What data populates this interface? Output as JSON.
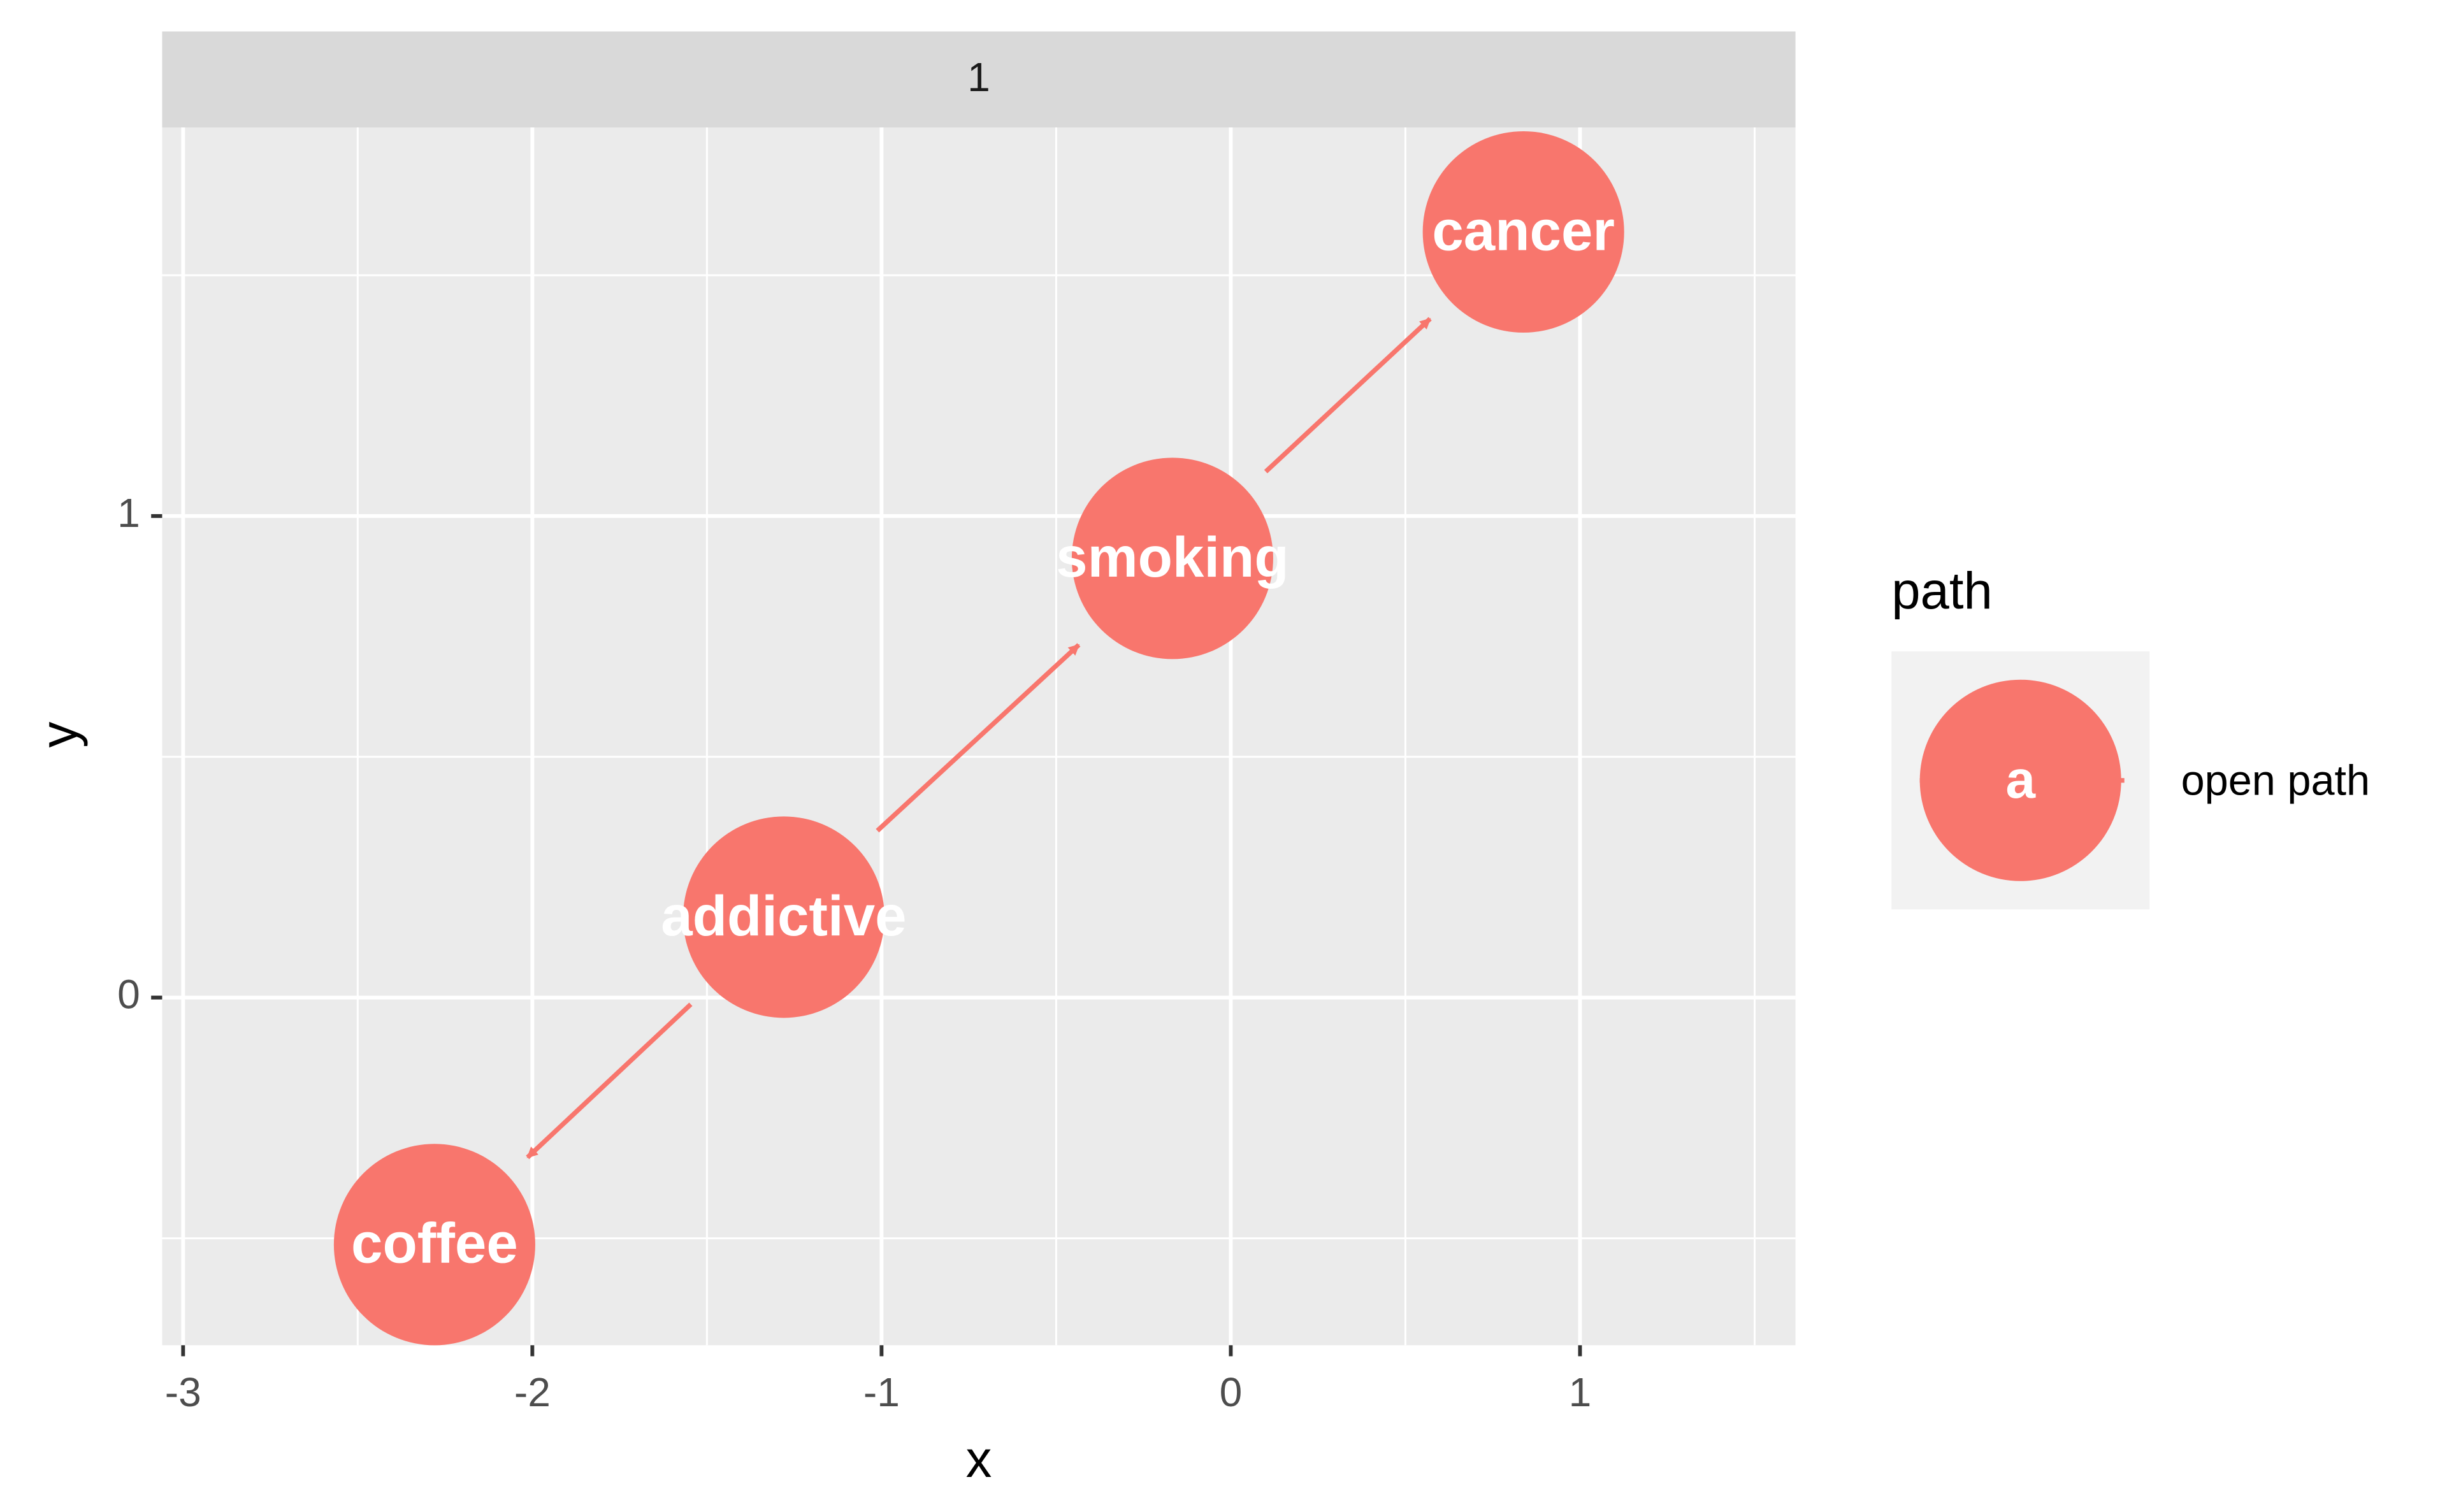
{
  "chart_data": {
    "type": "dag",
    "strip": "1",
    "xlabel": "x",
    "ylabel": "y",
    "color": "#F8766D",
    "xlim": [
      -3.06,
      1.617
    ],
    "ylim": [
      -0.722,
      1.807
    ],
    "xticks": [
      -3,
      -2,
      -1,
      0,
      1
    ],
    "yticks": [
      0,
      1
    ],
    "xminor": [
      -2.5,
      -1.5,
      -0.5,
      0.5,
      1.5
    ],
    "yminor": [
      -0.5,
      0.5,
      1.5
    ],
    "grid": true,
    "nodes": [
      {
        "label": "coffee",
        "x": -2.28,
        "y": -0.513
      },
      {
        "label": "addictive",
        "x": -1.28,
        "y": 0.167
      },
      {
        "label": "smoking",
        "x": -0.167,
        "y": 0.912
      },
      {
        "label": "cancer",
        "x": 0.838,
        "y": 1.59
      }
    ],
    "edges": [
      {
        "from": 1,
        "to": 0
      },
      {
        "from": 1,
        "to": 2
      },
      {
        "from": 2,
        "to": 3
      }
    ],
    "legend": {
      "title": "path",
      "key": "a",
      "label": "open path",
      "position": "right"
    }
  }
}
